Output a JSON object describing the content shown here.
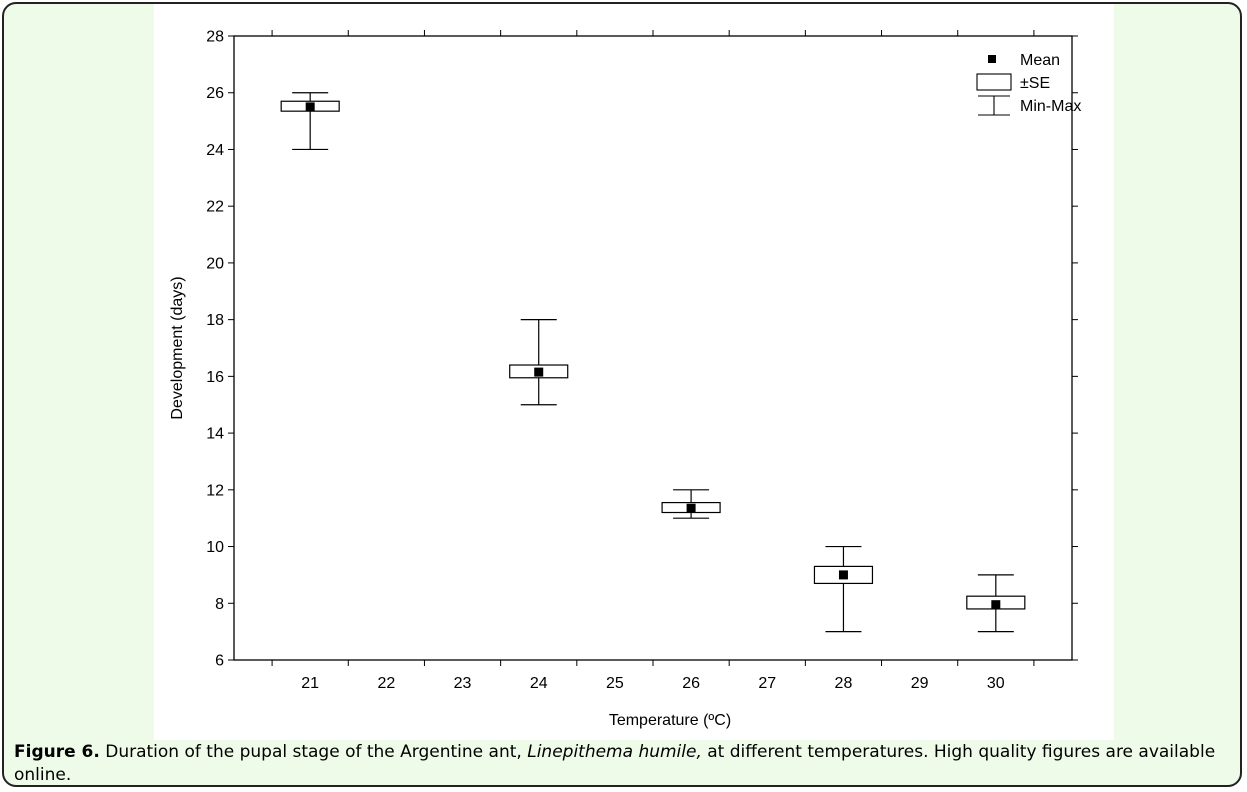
{
  "caption": {
    "figure_label": "Figure 6.",
    "text_before": "Duration of the pupal stage of the Argentine ant,",
    "species": "Linepithema humile,",
    "text_after": "at different temperatures. High quality figures are available online."
  },
  "chart_data": {
    "type": "boxplot",
    "title": "",
    "xlabel": "Temperature (ºC)",
    "ylabel": "Development (days)",
    "ylim": [
      6,
      28
    ],
    "yticks": [
      6,
      8,
      10,
      12,
      14,
      16,
      18,
      20,
      22,
      24,
      26,
      28
    ],
    "categories": [
      "21",
      "22",
      "23",
      "24",
      "25",
      "26",
      "27",
      "28",
      "29",
      "30"
    ],
    "legend": {
      "position": "top-right",
      "entries": [
        {
          "symbol": "mean",
          "label": "Mean"
        },
        {
          "symbol": "box",
          "label": "±SE"
        },
        {
          "symbol": "whisker",
          "label": "Min-Max"
        }
      ]
    },
    "grid": false,
    "series": [
      {
        "x": "21",
        "mean": 25.5,
        "se_low": 25.35,
        "se_high": 25.7,
        "min": 24,
        "max": 26
      },
      {
        "x": "24",
        "mean": 16.15,
        "se_low": 15.95,
        "se_high": 16.4,
        "min": 15,
        "max": 18
      },
      {
        "x": "26",
        "mean": 11.35,
        "se_low": 11.2,
        "se_high": 11.55,
        "min": 11,
        "max": 12
      },
      {
        "x": "28",
        "mean": 9.0,
        "se_low": 8.7,
        "se_high": 9.3,
        "min": 7,
        "max": 10
      },
      {
        "x": "30",
        "mean": 7.95,
        "se_low": 7.8,
        "se_high": 8.25,
        "min": 7,
        "max": 9
      }
    ]
  }
}
